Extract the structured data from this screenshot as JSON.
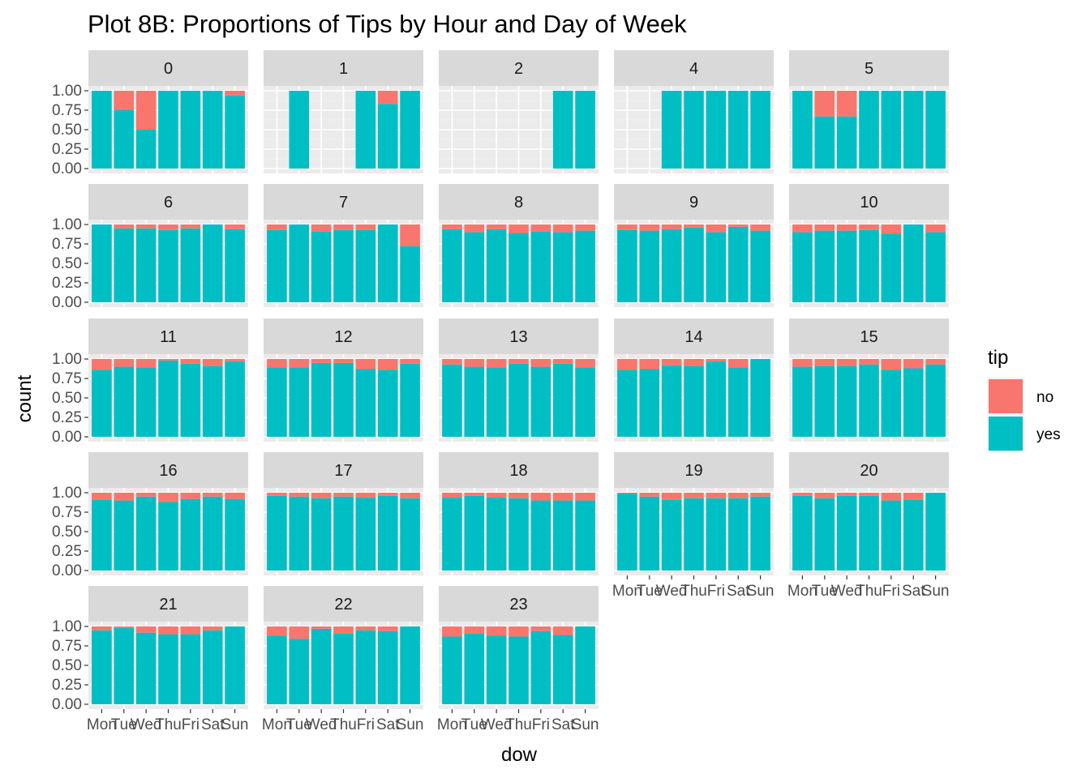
{
  "chart_data": {
    "type": "bar",
    "stacking": "fill",
    "title": "Plot 8B: Proportions of Tips by Hour and Day of Week",
    "xlabel": "dow",
    "ylabel": "count",
    "categories": [
      "Mon",
      "Tue",
      "Wed",
      "Thu",
      "Fri",
      "Sat",
      "Sun"
    ],
    "y_ticks": [
      "0.00",
      "0.25",
      "0.50",
      "0.75",
      "1.00"
    ],
    "ylim": [
      0,
      1
    ],
    "grid": true,
    "facet_ncol": 5,
    "legend": {
      "title": "tip",
      "position": "right",
      "items": [
        {
          "label": "no",
          "color": "#F8766D"
        },
        {
          "label": "yes",
          "color": "#00BFC4"
        }
      ]
    },
    "panels": [
      {
        "label": "0",
        "yes": [
          1.0,
          0.75,
          0.5,
          1.0,
          1.0,
          1.0,
          0.94
        ]
      },
      {
        "label": "1",
        "yes": [
          null,
          1.0,
          null,
          null,
          1.0,
          0.83,
          1.0
        ]
      },
      {
        "label": "2",
        "yes": [
          null,
          null,
          null,
          null,
          null,
          1.0,
          1.0
        ]
      },
      {
        "label": "4",
        "yes": [
          null,
          null,
          1.0,
          1.0,
          1.0,
          1.0,
          1.0
        ]
      },
      {
        "label": "5",
        "yes": [
          1.0,
          0.67,
          0.67,
          1.0,
          1.0,
          1.0,
          1.0
        ]
      },
      {
        "label": "6",
        "yes": [
          1.0,
          0.95,
          0.95,
          0.93,
          0.95,
          1.0,
          0.94
        ]
      },
      {
        "label": "7",
        "yes": [
          0.93,
          1.0,
          0.91,
          0.93,
          0.93,
          1.0,
          0.72
        ]
      },
      {
        "label": "8",
        "yes": [
          0.94,
          0.9,
          0.94,
          0.89,
          0.91,
          0.9,
          0.92
        ]
      },
      {
        "label": "9",
        "yes": [
          0.93,
          0.92,
          0.94,
          0.96,
          0.9,
          0.97,
          0.92
        ]
      },
      {
        "label": "10",
        "yes": [
          0.9,
          0.92,
          0.92,
          0.93,
          0.88,
          1.0,
          0.9
        ]
      },
      {
        "label": "11",
        "yes": [
          0.86,
          0.9,
          0.89,
          0.98,
          0.94,
          0.91,
          0.97
        ]
      },
      {
        "label": "12",
        "yes": [
          0.89,
          0.89,
          0.95,
          0.95,
          0.87,
          0.86,
          0.94
        ]
      },
      {
        "label": "13",
        "yes": [
          0.93,
          0.9,
          0.89,
          0.94,
          0.9,
          0.94,
          0.89
        ]
      },
      {
        "label": "14",
        "yes": [
          0.86,
          0.87,
          0.92,
          0.91,
          0.97,
          0.89,
          1.0
        ]
      },
      {
        "label": "15",
        "yes": [
          0.9,
          0.91,
          0.91,
          0.93,
          0.86,
          0.88,
          0.93
        ]
      },
      {
        "label": "16",
        "yes": [
          0.91,
          0.9,
          0.95,
          0.88,
          0.92,
          0.95,
          0.92
        ]
      },
      {
        "label": "17",
        "yes": [
          0.96,
          0.95,
          0.93,
          0.95,
          0.94,
          0.96,
          0.93
        ]
      },
      {
        "label": "18",
        "yes": [
          0.94,
          0.96,
          0.94,
          0.93,
          0.9,
          0.9,
          0.9
        ]
      },
      {
        "label": "19",
        "yes": [
          0.99,
          0.95,
          0.91,
          0.93,
          0.93,
          0.93,
          0.95
        ]
      },
      {
        "label": "20",
        "yes": [
          0.96,
          0.93,
          0.96,
          0.96,
          0.9,
          0.91,
          1.0
        ]
      },
      {
        "label": "21",
        "yes": [
          0.95,
          0.98,
          0.92,
          0.9,
          0.9,
          0.95,
          1.0
        ]
      },
      {
        "label": "22",
        "yes": [
          0.88,
          0.84,
          0.97,
          0.91,
          0.95,
          0.94,
          1.0
        ]
      },
      {
        "label": "23",
        "yes": [
          0.87,
          0.91,
          0.88,
          0.87,
          0.94,
          0.89,
          1.0
        ]
      }
    ]
  }
}
